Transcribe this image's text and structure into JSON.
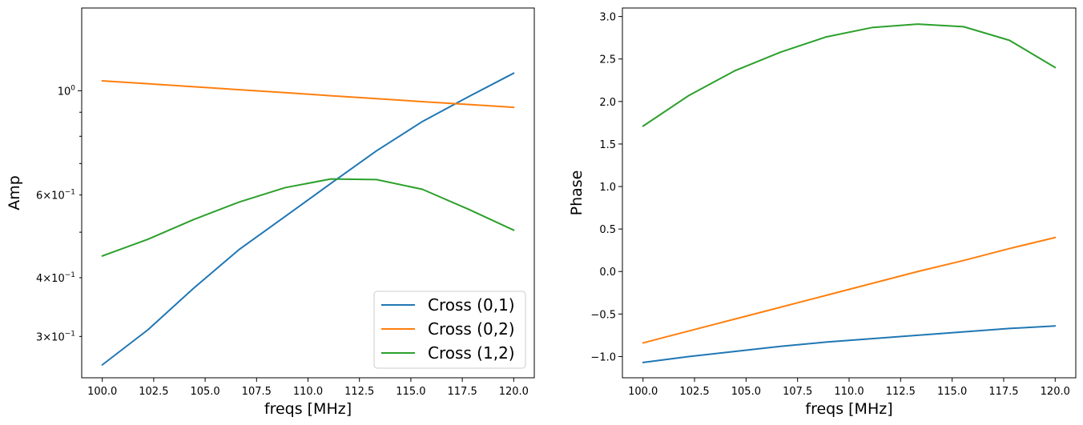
{
  "chart_data": [
    {
      "type": "line",
      "title": "",
      "xlabel": "freqs [MHz]",
      "ylabel": "Amp",
      "yscale": "log",
      "xlim": [
        99.0,
        121.0
      ],
      "ylim": [
        0.245,
        1.5
      ],
      "xticks": [
        100.0,
        102.5,
        105.0,
        107.5,
        110.0,
        112.5,
        115.0,
        117.5,
        120.0
      ],
      "xtick_labels": [
        "100.0",
        "102.5",
        "105.0",
        "107.5",
        "110.0",
        "112.5",
        "115.0",
        "117.5",
        "120.0"
      ],
      "yticks_major": [
        {
          "value": 1.0,
          "base": "10",
          "exp": "0",
          "mant": ""
        }
      ],
      "yticks_minor": [
        {
          "value": 0.3,
          "base": "10",
          "exp": "−1",
          "mant": "3×"
        },
        {
          "value": 0.4,
          "base": "10",
          "exp": "−1",
          "mant": "4×"
        },
        {
          "value": 0.5,
          "base": "",
          "exp": "",
          "mant": ""
        },
        {
          "value": 0.6,
          "base": "10",
          "exp": "−1",
          "mant": "6×"
        },
        {
          "value": 0.7,
          "base": "",
          "exp": "",
          "mant": ""
        },
        {
          "value": 0.8,
          "base": "",
          "exp": "",
          "mant": ""
        },
        {
          "value": 0.9,
          "base": "",
          "exp": "",
          "mant": ""
        }
      ],
      "legend_position": "bottom-right",
      "x": [
        100.0,
        102.22,
        104.44,
        106.67,
        108.89,
        111.11,
        113.33,
        115.56,
        117.78,
        120.0
      ],
      "series": [
        {
          "name": "Cross (0,1)",
          "color": "#1f77b4",
          "values": [
            0.261,
            0.31,
            0.38,
            0.46,
            0.54,
            0.635,
            0.745,
            0.86,
            0.97,
            1.09
          ]
        },
        {
          "name": "Cross (0,2)",
          "color": "#ff7f0e",
          "values": [
            1.05,
            1.035,
            1.02,
            1.005,
            0.991,
            0.976,
            0.962,
            0.948,
            0.935,
            0.922
          ]
        },
        {
          "name": "Cross (1,2)",
          "color": "#2ca02c",
          "values": [
            0.445,
            0.483,
            0.532,
            0.58,
            0.622,
            0.649,
            0.647,
            0.617,
            0.56,
            0.505
          ]
        }
      ]
    },
    {
      "type": "line",
      "title": "",
      "xlabel": "freqs [MHz]",
      "ylabel": "Phase",
      "yscale": "linear",
      "xlim": [
        99.0,
        121.0
      ],
      "ylim": [
        -1.25,
        3.1
      ],
      "xticks": [
        100.0,
        102.5,
        105.0,
        107.5,
        110.0,
        112.5,
        115.0,
        117.5,
        120.0
      ],
      "xtick_labels": [
        "100.0",
        "102.5",
        "105.0",
        "107.5",
        "110.0",
        "112.5",
        "115.0",
        "117.5",
        "120.0"
      ],
      "yticks": [
        -1.0,
        -0.5,
        0.0,
        0.5,
        1.0,
        1.5,
        2.0,
        2.5,
        3.0
      ],
      "ytick_labels": [
        "−1.0",
        "−0.5",
        "0.0",
        "0.5",
        "1.0",
        "1.5",
        "2.0",
        "2.5",
        "3.0"
      ],
      "x": [
        100.0,
        102.22,
        104.44,
        106.67,
        108.89,
        111.11,
        113.33,
        115.56,
        117.78,
        120.0
      ],
      "series": [
        {
          "name": "Cross (0,1)",
          "color": "#1f77b4",
          "values": [
            -1.07,
            -1.0,
            -0.94,
            -0.88,
            -0.83,
            -0.79,
            -0.75,
            -0.71,
            -0.67,
            -0.64
          ]
        },
        {
          "name": "Cross (0,2)",
          "color": "#ff7f0e",
          "values": [
            -0.84,
            -0.7,
            -0.56,
            -0.42,
            -0.28,
            -0.14,
            0.0,
            0.13,
            0.27,
            0.4
          ]
        },
        {
          "name": "Cross (1,2)",
          "color": "#2ca02c",
          "values": [
            1.71,
            2.07,
            2.36,
            2.58,
            2.76,
            2.87,
            2.91,
            2.88,
            2.72,
            2.4
          ]
        }
      ]
    }
  ]
}
